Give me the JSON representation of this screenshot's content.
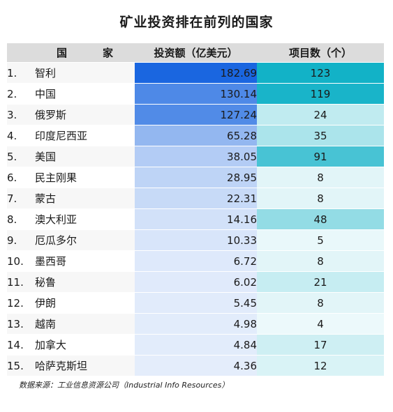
{
  "title": "矿业投资排在前列的国家",
  "source": "数据来源：工业信息资源公司（Industrial Info Resources）",
  "colors": {
    "header_bg": "#dcdcdc",
    "investment_max": "#1a66e0",
    "investment_min": "#ffffff",
    "projects_max": "#12b2c7",
    "projects_min": "#ffffff"
  },
  "chart_data": {
    "type": "table",
    "columns": [
      "国　家",
      "投资额（亿美元）",
      "项目数（个）"
    ],
    "rows": [
      {
        "rank": "1.",
        "country": "智利",
        "investment": "182.69",
        "projects": "123"
      },
      {
        "rank": "2.",
        "country": "中国",
        "investment": "130.14",
        "projects": "119"
      },
      {
        "rank": "3.",
        "country": "俄罗斯",
        "investment": "127.24",
        "projects": "24"
      },
      {
        "rank": "4.",
        "country": "印度尼西亚",
        "investment": "65.28",
        "projects": "35"
      },
      {
        "rank": "5.",
        "country": "美国",
        "investment": "38.05",
        "projects": "91"
      },
      {
        "rank": "6.",
        "country": "民主刚果",
        "investment": "28.95",
        "projects": "8"
      },
      {
        "rank": "7.",
        "country": "蒙古",
        "investment": "22.31",
        "projects": "8"
      },
      {
        "rank": "8.",
        "country": "澳大利亚",
        "investment": "14.16",
        "projects": "48"
      },
      {
        "rank": "9.",
        "country": "厄瓜多尔",
        "investment": "10.33",
        "projects": "5"
      },
      {
        "rank": "10.",
        "country": "墨西哥",
        "investment": "6.72",
        "projects": "8"
      },
      {
        "rank": "11.",
        "country": "秘鲁",
        "investment": "6.02",
        "projects": "21"
      },
      {
        "rank": "12.",
        "country": "伊朗",
        "investment": "5.45",
        "projects": "8"
      },
      {
        "rank": "13.",
        "country": "越南",
        "investment": "4.98",
        "projects": "4"
      },
      {
        "rank": "14.",
        "country": "加拿大",
        "investment": "4.84",
        "projects": "17"
      },
      {
        "rank": "15.",
        "country": "哈萨克斯坦",
        "investment": "4.36",
        "projects": "12"
      }
    ]
  }
}
